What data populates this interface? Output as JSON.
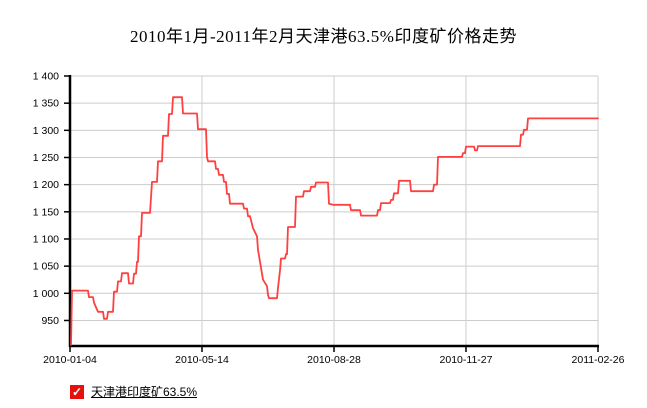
{
  "title": "2010年1月-2011年2月天津港63.5%印度矿价格走势",
  "legend": {
    "label": "天津港印度矿63.5%",
    "checked": true,
    "checkmark": "✓",
    "checkbox_color": "#e8100c"
  },
  "chart_data": {
    "type": "line",
    "title": "2010年1月-2011年2月天津港63.5%印度矿价格走势",
    "xlabel": "",
    "ylabel": "",
    "x_tick_labels": [
      "2010-01-04",
      "2010-05-14",
      "2010-08-28",
      "2010-11-27",
      "2011-02-26"
    ],
    "y_ticks": [
      950,
      1000,
      1050,
      1100,
      1150,
      1200,
      1250,
      1300,
      1350,
      1400
    ],
    "y_tick_labels": [
      "950",
      "1 000",
      "1 050",
      "1 100",
      "1 150",
      "1 200",
      "1 250",
      "1 300",
      "1 350",
      "1 400"
    ],
    "ylim": [
      903,
      1400
    ],
    "grid": true,
    "legend_position": "bottom-left",
    "colors": {
      "line": "#ff4040",
      "grid": "#cccccc",
      "axis": "#000000",
      "background": "#ffffff"
    },
    "series": [
      {
        "name": "天津港印度矿63.5%",
        "points": [
          [
            1,
            905
          ],
          [
            2,
            1005
          ],
          [
            18,
            1005
          ],
          [
            19,
            993
          ],
          [
            23,
            993
          ],
          [
            24,
            983
          ],
          [
            27,
            970
          ],
          [
            28,
            966
          ],
          [
            33,
            966
          ],
          [
            34,
            953
          ],
          [
            37,
            953
          ],
          [
            38,
            966
          ],
          [
            43,
            966
          ],
          [
            44,
            1003
          ],
          [
            47,
            1003
          ],
          [
            48,
            1022
          ],
          [
            51,
            1022
          ],
          [
            52,
            1037
          ],
          [
            58,
            1037
          ],
          [
            59,
            1018
          ],
          [
            63,
            1018
          ],
          [
            64,
            1036
          ],
          [
            66,
            1036
          ],
          [
            67,
            1058
          ],
          [
            68,
            1058
          ],
          [
            69,
            1105
          ],
          [
            71,
            1105
          ],
          [
            72,
            1148
          ],
          [
            80,
            1148
          ],
          [
            82,
            1205
          ],
          [
            87,
            1205
          ],
          [
            88,
            1243
          ],
          [
            92,
            1243
          ],
          [
            93,
            1290
          ],
          [
            98,
            1290
          ],
          [
            99,
            1330
          ],
          [
            102,
            1330
          ],
          [
            103,
            1361
          ],
          [
            112,
            1361
          ],
          [
            113,
            1331
          ],
          [
            127,
            1331
          ],
          [
            128,
            1302
          ],
          [
            136,
            1302
          ],
          [
            137,
            1251
          ],
          [
            138,
            1243
          ],
          [
            145,
            1243
          ],
          [
            146,
            1229
          ],
          [
            148,
            1229
          ],
          [
            149,
            1218
          ],
          [
            153,
            1218
          ],
          [
            154,
            1205
          ],
          [
            156,
            1205
          ],
          [
            157,
            1183
          ],
          [
            159,
            1183
          ],
          [
            160,
            1165
          ],
          [
            173,
            1165
          ],
          [
            174,
            1156
          ],
          [
            177,
            1156
          ],
          [
            178,
            1142
          ],
          [
            180,
            1142
          ],
          [
            183,
            1120
          ],
          [
            187,
            1105
          ],
          [
            188,
            1080
          ],
          [
            193,
            1025
          ],
          [
            197,
            1013
          ],
          [
            198,
            997
          ],
          [
            199,
            991
          ],
          [
            207,
            991
          ],
          [
            208,
            1010
          ],
          [
            210,
            1042
          ],
          [
            211,
            1064
          ],
          [
            215,
            1064
          ],
          [
            216,
            1072
          ],
          [
            217,
            1072
          ],
          [
            218,
            1122
          ],
          [
            225,
            1122
          ],
          [
            226,
            1178
          ],
          [
            233,
            1178
          ],
          [
            234,
            1188
          ],
          [
            240,
            1188
          ],
          [
            241,
            1196
          ],
          [
            245,
            1196
          ],
          [
            246,
            1204
          ],
          [
            258,
            1204
          ],
          [
            259,
            1165
          ],
          [
            263,
            1163
          ],
          [
            280,
            1163
          ],
          [
            281,
            1153
          ],
          [
            290,
            1153
          ],
          [
            291,
            1143
          ],
          [
            307,
            1143
          ],
          [
            308,
            1153
          ],
          [
            310,
            1153
          ],
          [
            311,
            1166
          ],
          [
            320,
            1166
          ],
          [
            321,
            1172
          ],
          [
            323,
            1172
          ],
          [
            324,
            1184
          ],
          [
            328,
            1184
          ],
          [
            329,
            1207
          ],
          [
            340,
            1207
          ],
          [
            341,
            1188
          ],
          [
            363,
            1188
          ],
          [
            364,
            1200
          ],
          [
            367,
            1200
          ],
          [
            368,
            1251
          ],
          [
            392,
            1251
          ],
          [
            393,
            1258
          ],
          [
            395,
            1258
          ],
          [
            396,
            1270
          ],
          [
            404,
            1270
          ],
          [
            405,
            1263
          ],
          [
            407,
            1263
          ],
          [
            408,
            1271
          ],
          [
            450,
            1271
          ],
          [
            451,
            1292
          ],
          [
            453,
            1292
          ],
          [
            454,
            1301
          ],
          [
            457,
            1301
          ],
          [
            458,
            1322
          ],
          [
            528,
            1322
          ]
        ]
      }
    ]
  }
}
